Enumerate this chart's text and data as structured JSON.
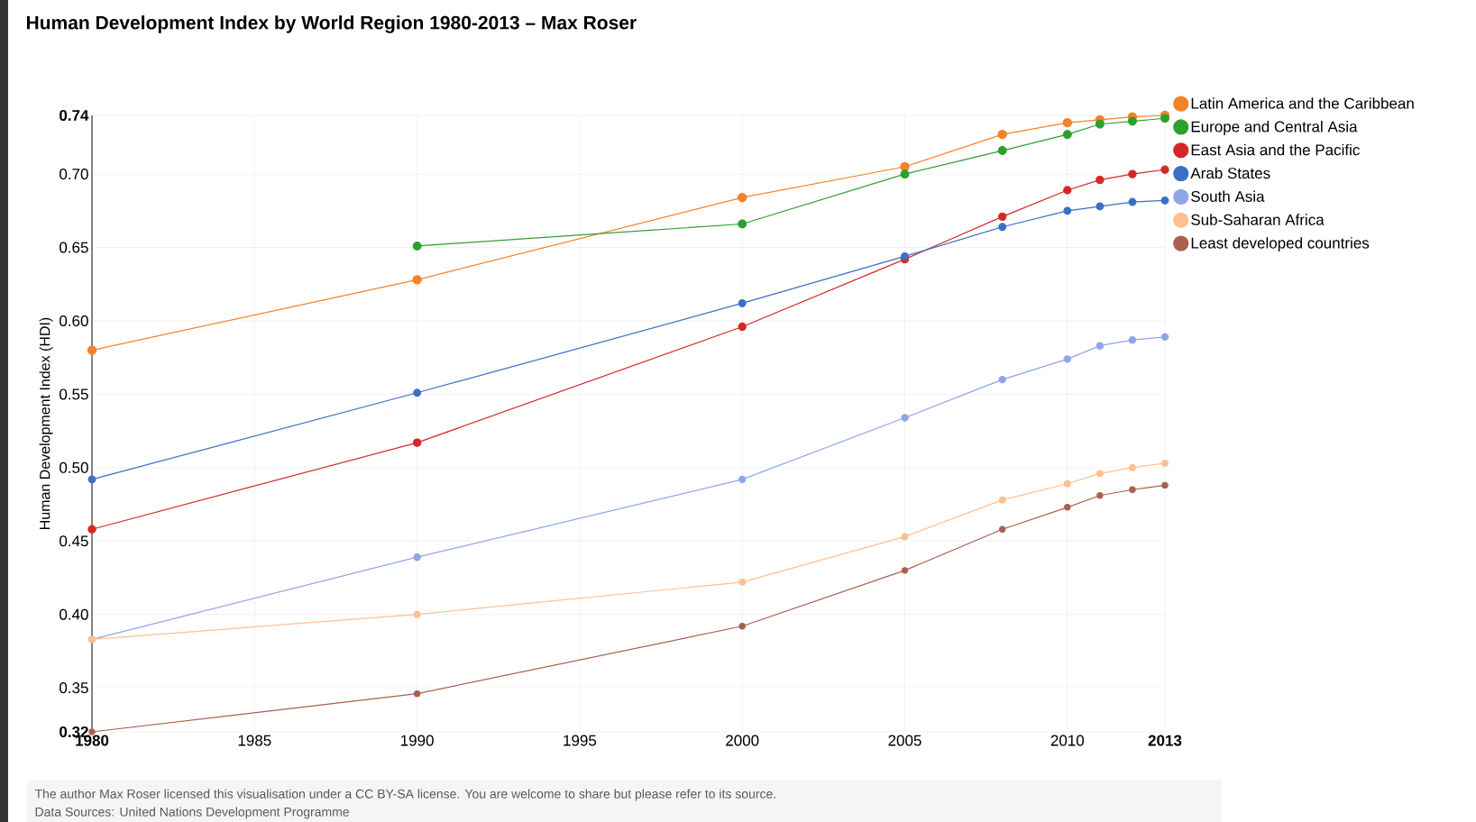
{
  "chart_data": {
    "type": "line",
    "title": "Human Development Index by World Region 1980-2013 – Max Roser",
    "ylabel": "Human Development Index (HDI)",
    "x": [
      1980,
      1990,
      2000,
      2005,
      2008,
      2010,
      2011,
      2012,
      2013
    ],
    "series": [
      {
        "name": "Latin America and the Caribbean",
        "color": "#f5822a",
        "values": [
          0.58,
          0.628,
          0.684,
          0.705,
          0.727,
          0.735,
          0.737,
          0.739,
          0.74
        ]
      },
      {
        "name": "Europe and Central Asia",
        "color": "#2ca02c",
        "values": [
          null,
          0.651,
          0.666,
          0.7,
          0.716,
          0.727,
          0.734,
          0.736,
          0.738
        ]
      },
      {
        "name": "East Asia and the Pacific",
        "color": "#d62728",
        "values": [
          0.458,
          0.517,
          0.596,
          0.642,
          0.671,
          0.689,
          0.696,
          0.7,
          0.703
        ]
      },
      {
        "name": "Arab States",
        "color": "#3a6fc4",
        "values": [
          0.492,
          0.551,
          0.612,
          0.644,
          0.664,
          0.675,
          0.678,
          0.681,
          0.682
        ]
      },
      {
        "name": "South Asia",
        "color": "#8ea6e8",
        "values": [
          0.383,
          0.439,
          0.492,
          0.534,
          0.56,
          0.574,
          0.583,
          0.587,
          0.589
        ]
      },
      {
        "name": "Sub-Saharan Africa",
        "color": "#ffbf90",
        "values": [
          0.383,
          0.4,
          0.422,
          0.453,
          0.478,
          0.489,
          0.496,
          0.5,
          0.503
        ]
      },
      {
        "name": "Least developed countries",
        "color": "#a9604f",
        "values": [
          0.32,
          0.346,
          0.392,
          0.43,
          0.458,
          0.473,
          0.481,
          0.485,
          0.488
        ]
      }
    ],
    "xlim": [
      1980,
      2013
    ],
    "xticks": [
      1980,
      1985,
      1990,
      1995,
      2000,
      2005,
      2010,
      2013
    ],
    "ylim": [
      0.32,
      0.74
    ],
    "yticks": [
      0.32,
      0.35,
      {
        "value": 0.4,
        "label": "0.40"
      },
      0.45,
      {
        "value": 0.5,
        "label": "0.50"
      },
      0.55,
      {
        "value": 0.6,
        "label": "0.60"
      },
      0.65,
      {
        "value": 0.7,
        "label": "0.70"
      },
      0.74
    ],
    "grid": true,
    "legend": "right",
    "marker": "circle",
    "line_style": "solid",
    "annotations": [
      "The author Max Roser licensed this visualisation under a CC BY-SA license. You are welcome to share but please refer to its source.",
      "Data Sources: United Nations Development Programme"
    ]
  }
}
